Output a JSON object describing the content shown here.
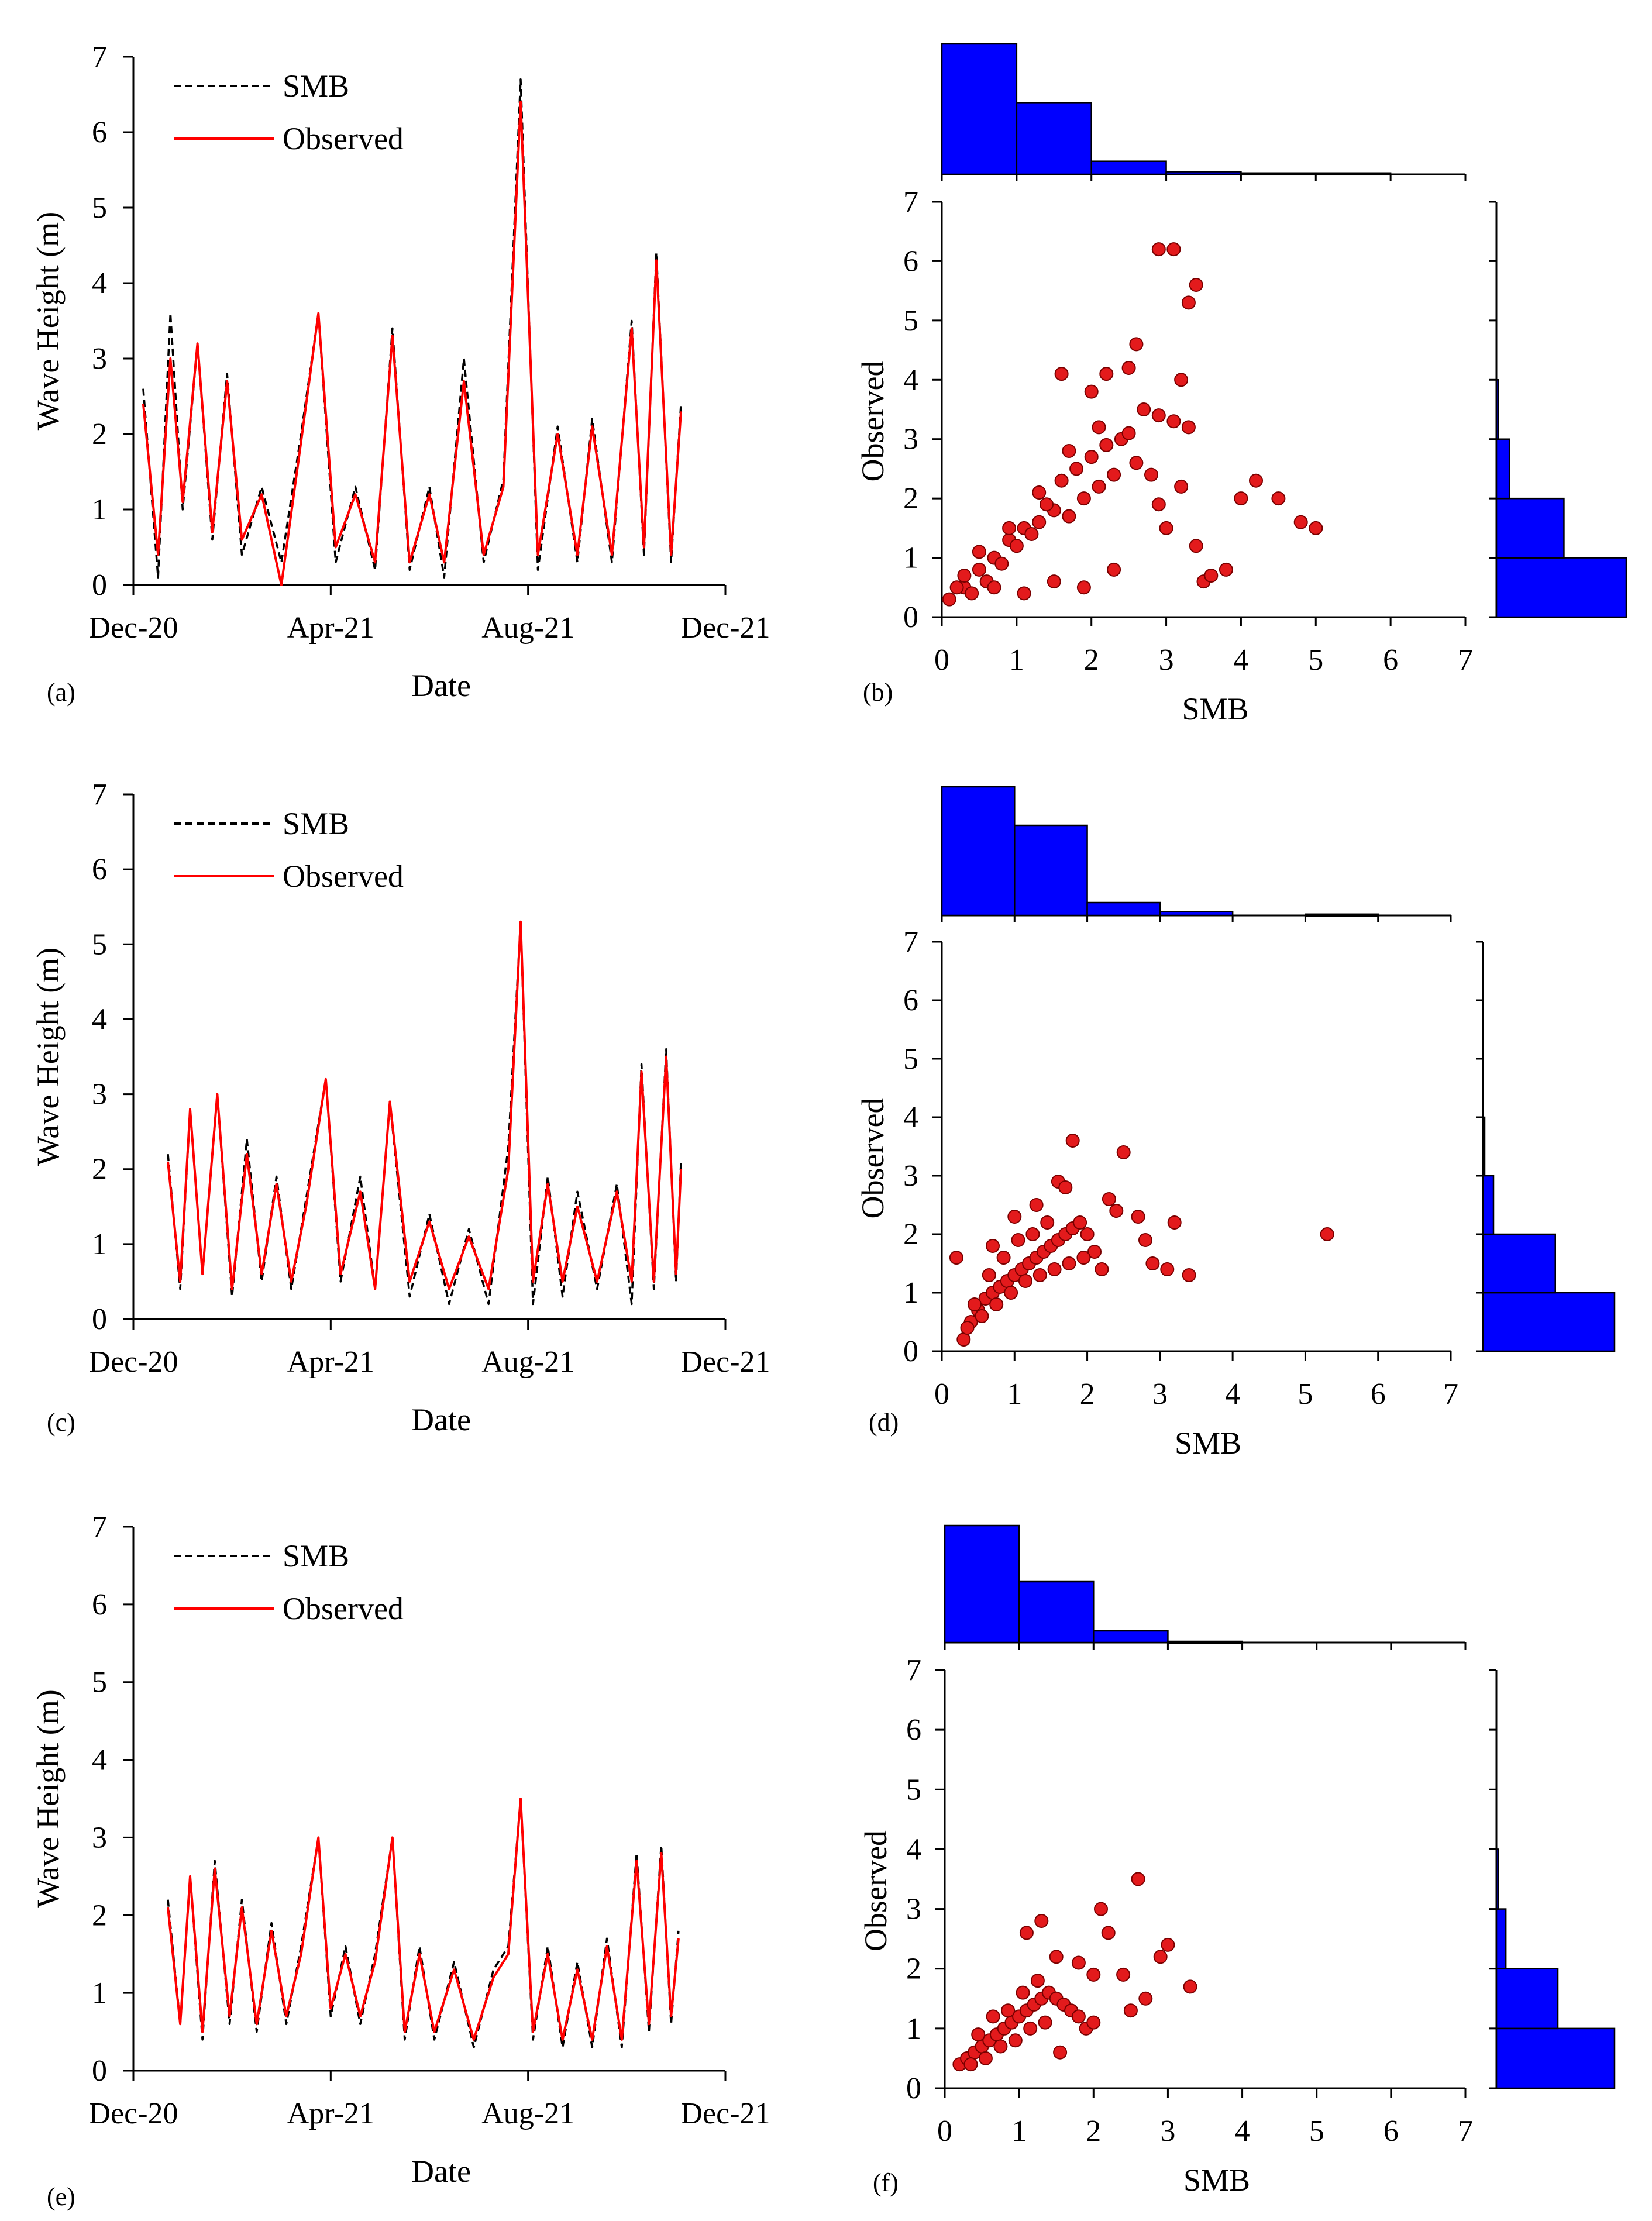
{
  "figure": {
    "colors": {
      "observed_line": "#ff0000",
      "smb_line": "#000000",
      "scatter_fill": "#e31a1c",
      "scatter_edge": "#7a0000",
      "histogram_fill": "#0000ff",
      "axis": "#000000"
    }
  },
  "chart_data": [
    {
      "id": "a",
      "panel_label": "(a)",
      "type": "line",
      "xlabel": "Date",
      "ylabel": "Wave Height (m)",
      "ylim": [
        0,
        7
      ],
      "yticks": [
        0,
        1,
        2,
        3,
        4,
        5,
        6,
        7
      ],
      "xlim": [
        0,
        12
      ],
      "xticks": [
        {
          "value": 0,
          "label": "Dec-20"
        },
        {
          "value": 4,
          "label": "Apr-21"
        },
        {
          "value": 8,
          "label": "Aug-21"
        },
        {
          "value": 12,
          "label": "Dec-21"
        }
      ],
      "legend": {
        "placement": "top-left",
        "entries": [
          "SMB",
          "Observed"
        ]
      },
      "series": [
        {
          "name": "SMB",
          "style": "dashed",
          "color": "#000000",
          "x": [
            0.2,
            0.5,
            0.75,
            1.0,
            1.3,
            1.6,
            1.9,
            2.2,
            2.6,
            3.0,
            3.4,
            3.75,
            4.1,
            4.5,
            4.9,
            5.25,
            5.6,
            6.0,
            6.3,
            6.7,
            7.1,
            7.5,
            7.85,
            8.2,
            8.6,
            9.0,
            9.3,
            9.7,
            10.1,
            10.35,
            10.6,
            10.9,
            11.1
          ],
          "values": [
            2.6,
            0.1,
            3.6,
            1.0,
            3.2,
            0.6,
            2.8,
            0.4,
            1.3,
            0.3,
            2.0,
            3.6,
            0.3,
            1.3,
            0.2,
            3.4,
            0.2,
            1.3,
            0.1,
            3.0,
            0.3,
            1.4,
            6.7,
            0.2,
            2.1,
            0.3,
            2.2,
            0.3,
            3.5,
            0.4,
            4.4,
            0.3,
            2.4
          ]
        },
        {
          "name": "Observed",
          "style": "solid",
          "color": "#ff0000",
          "x": [
            0.2,
            0.5,
            0.75,
            1.0,
            1.3,
            1.6,
            1.9,
            2.2,
            2.6,
            3.0,
            3.4,
            3.75,
            4.1,
            4.5,
            4.9,
            5.25,
            5.6,
            6.0,
            6.3,
            6.7,
            7.1,
            7.5,
            7.85,
            8.2,
            8.6,
            9.0,
            9.3,
            9.7,
            10.1,
            10.35,
            10.6,
            10.9,
            11.1
          ],
          "values": [
            2.4,
            0.4,
            3.0,
            1.1,
            3.2,
            0.7,
            2.7,
            0.6,
            1.2,
            0.0,
            1.9,
            3.6,
            0.5,
            1.2,
            0.3,
            3.3,
            0.3,
            1.2,
            0.3,
            2.7,
            0.4,
            1.3,
            6.4,
            0.4,
            2.0,
            0.4,
            2.1,
            0.4,
            3.4,
            0.5,
            4.3,
            0.4,
            2.3
          ]
        }
      ]
    },
    {
      "id": "b",
      "panel_label": "(b)",
      "type": "scatter",
      "xlabel": "SMB",
      "ylabel": "Observed",
      "xlim": [
        0,
        7
      ],
      "ylim": [
        0,
        7
      ],
      "xticks": [
        0,
        1,
        2,
        3,
        4,
        5,
        6,
        7
      ],
      "yticks": [
        0,
        1,
        2,
        3,
        4,
        5,
        6,
        7
      ],
      "x": [
        0.1,
        0.3,
        0.5,
        0.7,
        0.9,
        1.1,
        1.3,
        1.5,
        1.7,
        1.9,
        2.1,
        2.3,
        0.4,
        0.6,
        0.8,
        1.0,
        1.2,
        1.4,
        1.6,
        1.8,
        2.0,
        2.2,
        2.4,
        0.2,
        0.5,
        0.9,
        1.3,
        1.7,
        2.1,
        2.5,
        2.6,
        2.7,
        2.8,
        2.9,
        3.0,
        3.1,
        3.2,
        3.3,
        3.4,
        3.5,
        3.6,
        3.8,
        4.0,
        4.2,
        4.5,
        4.8,
        5.0,
        0.3,
        0.7,
        1.1,
        1.5,
        1.9,
        2.3,
        2.6,
        2.9,
        3.2,
        3.3,
        2.9,
        3.1,
        3.4,
        1.6,
        2.2,
        2.5,
        2.0
      ],
      "y": [
        0.3,
        0.5,
        0.8,
        1.0,
        1.3,
        1.5,
        1.6,
        1.8,
        1.7,
        2.0,
        2.2,
        2.4,
        0.4,
        0.6,
        0.9,
        1.2,
        1.4,
        1.9,
        2.3,
        2.5,
        2.7,
        2.9,
        3.0,
        0.5,
        1.1,
        1.5,
        2.1,
        2.8,
        3.2,
        3.1,
        2.6,
        3.5,
        2.4,
        1.9,
        1.5,
        3.3,
        2.2,
        3.2,
        1.2,
        0.6,
        0.7,
        0.8,
        2.0,
        2.3,
        2.0,
        1.6,
        1.5,
        0.7,
        0.5,
        0.4,
        0.6,
        0.5,
        0.8,
        4.6,
        3.4,
        4.0,
        5.3,
        6.2,
        6.2,
        5.6,
        4.1,
        4.1,
        4.2,
        3.8
      ],
      "marginal_x": {
        "bins": [
          0,
          1,
          2,
          3,
          4,
          5,
          6,
          7
        ],
        "counts": [
          100,
          55,
          10,
          2,
          1,
          1,
          0
        ]
      },
      "marginal_y": {
        "bins": [
          0,
          1,
          2,
          3,
          4,
          5,
          6,
          7
        ],
        "counts": [
          100,
          52,
          10,
          1,
          0,
          0,
          0
        ]
      }
    },
    {
      "id": "c",
      "panel_label": "(c)",
      "type": "line",
      "xlabel": "Date",
      "ylabel": "Wave Height (m)",
      "ylim": [
        0,
        7
      ],
      "yticks": [
        0,
        1,
        2,
        3,
        4,
        5,
        6,
        7
      ],
      "xlim": [
        0,
        12
      ],
      "xticks": [
        {
          "value": 0,
          "label": "Dec-20"
        },
        {
          "value": 4,
          "label": "Apr-21"
        },
        {
          "value": 8,
          "label": "Aug-21"
        },
        {
          "value": 12,
          "label": "Dec-21"
        }
      ],
      "legend": {
        "placement": "top-left",
        "entries": [
          "SMB",
          "Observed"
        ]
      },
      "series": [
        {
          "name": "SMB",
          "style": "dashed",
          "color": "#000000",
          "x": [
            0.7,
            0.95,
            1.15,
            1.4,
            1.7,
            2.0,
            2.3,
            2.6,
            2.9,
            3.2,
            3.5,
            3.9,
            4.2,
            4.6,
            4.9,
            5.2,
            5.6,
            6.0,
            6.4,
            6.8,
            7.2,
            7.6,
            7.85,
            8.1,
            8.4,
            8.7,
            9.0,
            9.4,
            9.8,
            10.1,
            10.3,
            10.55,
            10.8,
            11.0,
            11.1
          ],
          "values": [
            2.2,
            0.4,
            2.8,
            0.6,
            3.0,
            0.3,
            2.4,
            0.5,
            1.9,
            0.4,
            1.6,
            3.2,
            0.5,
            1.9,
            0.4,
            2.9,
            0.3,
            1.4,
            0.2,
            1.2,
            0.2,
            2.3,
            5.3,
            0.2,
            1.9,
            0.3,
            1.7,
            0.4,
            1.8,
            0.2,
            3.4,
            0.4,
            3.6,
            0.5,
            2.1
          ]
        },
        {
          "name": "Observed",
          "style": "solid",
          "color": "#ff0000",
          "x": [
            0.7,
            0.95,
            1.15,
            1.4,
            1.7,
            2.0,
            2.3,
            2.6,
            2.9,
            3.2,
            3.5,
            3.9,
            4.2,
            4.6,
            4.9,
            5.2,
            5.6,
            6.0,
            6.4,
            6.8,
            7.2,
            7.6,
            7.85,
            8.1,
            8.4,
            8.7,
            9.0,
            9.4,
            9.8,
            10.1,
            10.3,
            10.55,
            10.8,
            11.0,
            11.1
          ],
          "values": [
            2.1,
            0.5,
            2.8,
            0.6,
            3.0,
            0.4,
            2.2,
            0.6,
            1.8,
            0.5,
            1.5,
            3.2,
            0.6,
            1.7,
            0.4,
            2.9,
            0.5,
            1.3,
            0.4,
            1.1,
            0.4,
            2.0,
            5.3,
            0.5,
            1.8,
            0.5,
            1.5,
            0.5,
            1.7,
            0.5,
            3.3,
            0.5,
            3.5,
            0.6,
            2.0
          ]
        }
      ]
    },
    {
      "id": "d",
      "panel_label": "(d)",
      "type": "scatter",
      "xlabel": "SMB",
      "ylabel": "Observed",
      "xlim": [
        0,
        7
      ],
      "ylim": [
        0,
        7
      ],
      "xticks": [
        0,
        1,
        2,
        3,
        4,
        5,
        6,
        7
      ],
      "yticks": [
        0,
        1,
        2,
        3,
        4,
        5,
        6,
        7
      ],
      "x": [
        0.3,
        0.4,
        0.5,
        0.6,
        0.7,
        0.8,
        0.9,
        1.0,
        1.1,
        1.2,
        1.3,
        1.4,
        1.5,
        1.6,
        1.7,
        1.8,
        1.9,
        2.0,
        2.1,
        2.2,
        0.35,
        0.55,
        0.75,
        0.95,
        1.15,
        1.35,
        1.55,
        1.75,
        1.95,
        0.45,
        0.65,
        0.85,
        1.05,
        1.25,
        1.45,
        0.7,
        1.0,
        1.3,
        1.6,
        1.8,
        2.3,
        2.5,
        2.4,
        2.7,
        2.8,
        2.9,
        3.1,
        3.2,
        3.4,
        1.7,
        0.2,
        5.3
      ],
      "y": [
        0.2,
        0.5,
        0.7,
        0.9,
        1.0,
        1.1,
        1.2,
        1.3,
        1.4,
        1.5,
        1.6,
        1.7,
        1.8,
        1.9,
        2.0,
        2.1,
        2.2,
        2.0,
        1.7,
        1.4,
        0.4,
        0.6,
        0.8,
        1.0,
        1.2,
        1.3,
        1.4,
        1.5,
        1.6,
        0.8,
        1.3,
        1.6,
        1.9,
        2.0,
        2.2,
        1.8,
        2.3,
        2.5,
        2.9,
        3.6,
        2.6,
        3.4,
        2.4,
        2.3,
        1.9,
        1.5,
        1.4,
        2.2,
        1.3,
        2.8,
        1.6,
        2.0
      ],
      "marginal_x": {
        "bins": [
          0,
          1,
          2,
          3,
          4,
          5,
          6,
          7
        ],
        "counts": [
          100,
          70,
          10,
          3,
          0,
          1,
          0
        ]
      },
      "marginal_y": {
        "bins": [
          0,
          1,
          2,
          3,
          4,
          5,
          6,
          7
        ],
        "counts": [
          100,
          55,
          8,
          1,
          0,
          0,
          0
        ]
      }
    },
    {
      "id": "e",
      "panel_label": "(e)",
      "type": "line",
      "xlabel": "Date",
      "ylabel": "Wave Height (m)",
      "ylim": [
        0,
        7
      ],
      "yticks": [
        0,
        1,
        2,
        3,
        4,
        5,
        6,
        7
      ],
      "xlim": [
        0,
        12
      ],
      "xticks": [
        {
          "value": 0,
          "label": "Dec-20"
        },
        {
          "value": 4,
          "label": "Apr-21"
        },
        {
          "value": 8,
          "label": "Aug-21"
        },
        {
          "value": 12,
          "label": "Dec-21"
        }
      ],
      "legend": {
        "placement": "top-left",
        "entries": [
          "SMB",
          "Observed"
        ]
      },
      "series": [
        {
          "name": "SMB",
          "style": "dashed",
          "color": "#000000",
          "x": [
            0.7,
            0.95,
            1.15,
            1.4,
            1.65,
            1.95,
            2.2,
            2.5,
            2.8,
            3.1,
            3.4,
            3.75,
            4.0,
            4.3,
            4.6,
            4.9,
            5.25,
            5.5,
            5.8,
            6.1,
            6.5,
            6.9,
            7.3,
            7.6,
            7.85,
            8.1,
            8.4,
            8.7,
            9.0,
            9.3,
            9.6,
            9.9,
            10.2,
            10.45,
            10.7,
            10.9,
            11.05
          ],
          "values": [
            2.2,
            0.6,
            2.5,
            0.4,
            2.7,
            0.6,
            2.2,
            0.5,
            1.9,
            0.6,
            1.6,
            3.0,
            0.7,
            1.6,
            0.6,
            1.5,
            3.0,
            0.4,
            1.6,
            0.4,
            1.4,
            0.3,
            1.3,
            1.6,
            3.5,
            0.4,
            1.6,
            0.3,
            1.4,
            0.3,
            1.7,
            0.3,
            2.8,
            0.5,
            2.9,
            0.6,
            1.8
          ]
        },
        {
          "name": "Observed",
          "style": "solid",
          "color": "#ff0000",
          "x": [
            0.7,
            0.95,
            1.15,
            1.4,
            1.65,
            1.95,
            2.2,
            2.5,
            2.8,
            3.1,
            3.4,
            3.75,
            4.0,
            4.3,
            4.6,
            4.9,
            5.25,
            5.5,
            5.8,
            6.1,
            6.5,
            6.9,
            7.3,
            7.6,
            7.85,
            8.1,
            8.4,
            8.7,
            9.0,
            9.3,
            9.6,
            9.9,
            10.2,
            10.45,
            10.7,
            10.9,
            11.05
          ],
          "values": [
            2.1,
            0.6,
            2.5,
            0.5,
            2.6,
            0.7,
            2.1,
            0.6,
            1.8,
            0.7,
            1.5,
            3.0,
            0.8,
            1.5,
            0.7,
            1.4,
            3.0,
            0.5,
            1.5,
            0.5,
            1.3,
            0.4,
            1.2,
            1.5,
            3.5,
            0.5,
            1.5,
            0.4,
            1.3,
            0.4,
            1.6,
            0.4,
            2.7,
            0.6,
            2.8,
            0.7,
            1.7
          ]
        }
      ]
    },
    {
      "id": "f",
      "panel_label": "(f)",
      "type": "scatter",
      "xlabel": "SMB",
      "ylabel": "Observed",
      "xlim": [
        0,
        7
      ],
      "ylim": [
        0,
        7
      ],
      "xticks": [
        0,
        1,
        2,
        3,
        4,
        5,
        6,
        7
      ],
      "yticks": [
        0,
        1,
        2,
        3,
        4,
        5,
        6,
        7
      ],
      "x": [
        0.2,
        0.3,
        0.4,
        0.5,
        0.6,
        0.7,
        0.8,
        0.9,
        1.0,
        1.1,
        1.2,
        1.3,
        1.4,
        1.5,
        1.6,
        1.7,
        1.8,
        1.9,
        2.0,
        0.35,
        0.55,
        0.75,
        0.95,
        1.15,
        1.35,
        1.55,
        0.45,
        0.65,
        0.85,
        1.05,
        1.25,
        1.1,
        1.3,
        1.5,
        2.1,
        2.2,
        2.4,
        2.5,
        2.6,
        2.7,
        2.9,
        3.0,
        3.3,
        2.0,
        1.8
      ],
      "y": [
        0.4,
        0.5,
        0.6,
        0.7,
        0.8,
        0.9,
        1.0,
        1.1,
        1.2,
        1.3,
        1.4,
        1.5,
        1.6,
        1.5,
        1.4,
        1.3,
        1.2,
        1.0,
        1.1,
        0.4,
        0.5,
        0.7,
        0.8,
        1.0,
        1.1,
        0.6,
        0.9,
        1.2,
        1.3,
        1.6,
        1.8,
        2.6,
        2.8,
        2.2,
        3.0,
        2.6,
        1.9,
        1.3,
        3.5,
        1.5,
        2.2,
        2.4,
        1.7,
        1.9,
        2.1
      ],
      "marginal_x": {
        "bins": [
          0,
          1,
          2,
          3,
          4,
          5,
          6,
          7
        ],
        "counts": [
          100,
          52,
          10,
          1,
          0,
          0,
          0
        ]
      },
      "marginal_y": {
        "bins": [
          0,
          1,
          2,
          3,
          4,
          5,
          6,
          7
        ],
        "counts": [
          100,
          52,
          8,
          1,
          0,
          0,
          0
        ]
      }
    }
  ]
}
